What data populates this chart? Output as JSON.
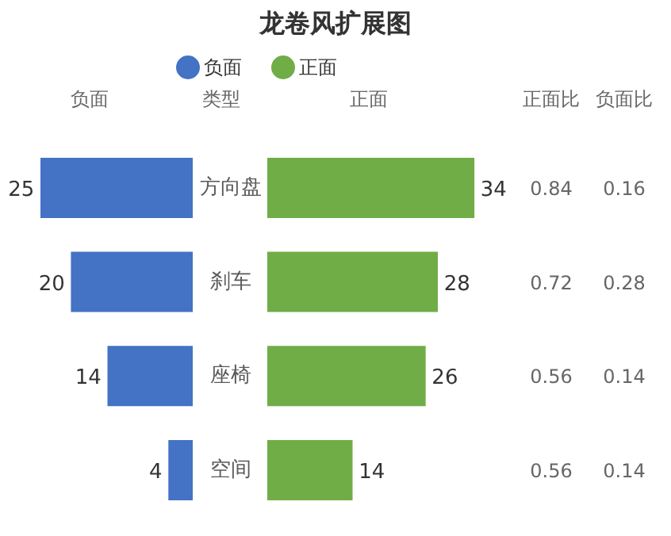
{
  "chart_data": [
    {
      "type": "other",
      "title": "龙卷风扩展图"
    },
    {
      "type": "bar",
      "orientation": "horizontal",
      "categories": [
        "方向盘",
        "刹车",
        "座椅",
        "空间"
      ],
      "series": [
        {
          "name": "负面",
          "color": "#4472c4",
          "values": [
            25,
            20,
            14,
            4
          ]
        }
      ],
      "data_labels": true,
      "legend": "top right",
      "tick_labels": false,
      "annotations": [
        "负面",
        "类型"
      ]
    },
    {
      "type": "bar",
      "orientation": "horizontal",
      "categories": [
        null,
        null,
        null,
        null
      ],
      "series": [
        {
          "name": "正面",
          "color": "#70ad47",
          "values": [
            34,
            28,
            26,
            14
          ]
        }
      ],
      "data_labels": true,
      "legend": "top left",
      "tick_labels": false,
      "annotations": [
        "正面",
        "正面比",
        "负面比",
        "0.84",
        "0.16",
        "0.72",
        "0.28",
        "0.56",
        "0.14",
        "0.56",
        "0.14"
      ]
    }
  ]
}
